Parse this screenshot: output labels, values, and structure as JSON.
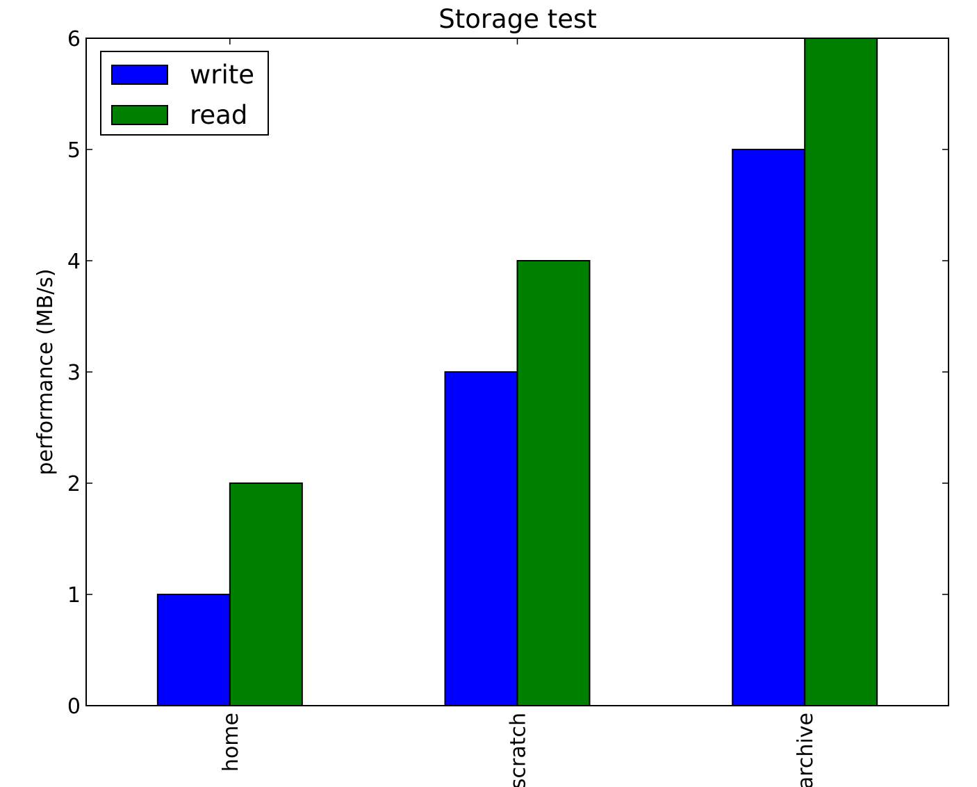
{
  "chart_data": {
    "type": "bar",
    "title": "Storage test",
    "xlabel": "",
    "ylabel": "performance (MB/s)",
    "categories": [
      "home",
      "scratch",
      "archive"
    ],
    "series": [
      {
        "name": "write",
        "values": [
          1,
          3,
          5
        ],
        "color": "#0000ff"
      },
      {
        "name": "read",
        "values": [
          2,
          4,
          6
        ],
        "color": "#008000"
      }
    ],
    "ylim": [
      0,
      6
    ],
    "yticks": [
      0,
      1,
      2,
      3,
      4,
      5,
      6
    ],
    "grid": false,
    "legend_position": "top-left",
    "category_label_rotation": "vertical"
  }
}
